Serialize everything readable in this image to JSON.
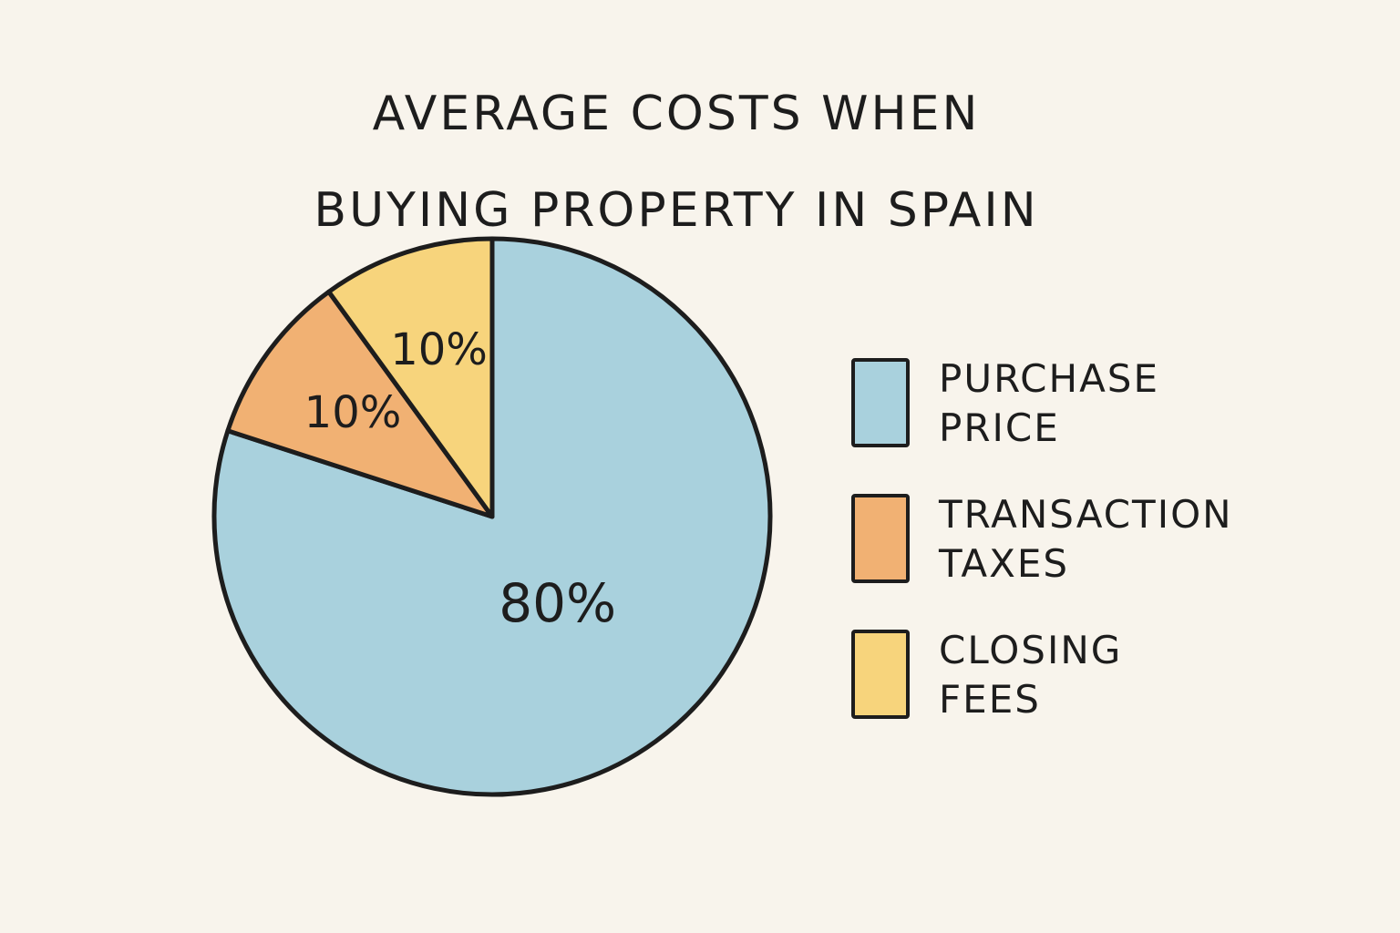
{
  "chart_data": {
    "type": "pie",
    "title": "AVERAGE COSTS WHEN BUYING PROPERTY IN SPAIN",
    "categories": [
      "PURCHASE PRICE",
      "TRANSACTION TAXES",
      "CLOSING FEES"
    ],
    "values": [
      80,
      10,
      10
    ],
    "value_labels": [
      "80%",
      "10%",
      "10%"
    ],
    "colors": [
      "#a9d1dd",
      "#f1b173",
      "#f7d47c"
    ],
    "legend": "right"
  }
}
